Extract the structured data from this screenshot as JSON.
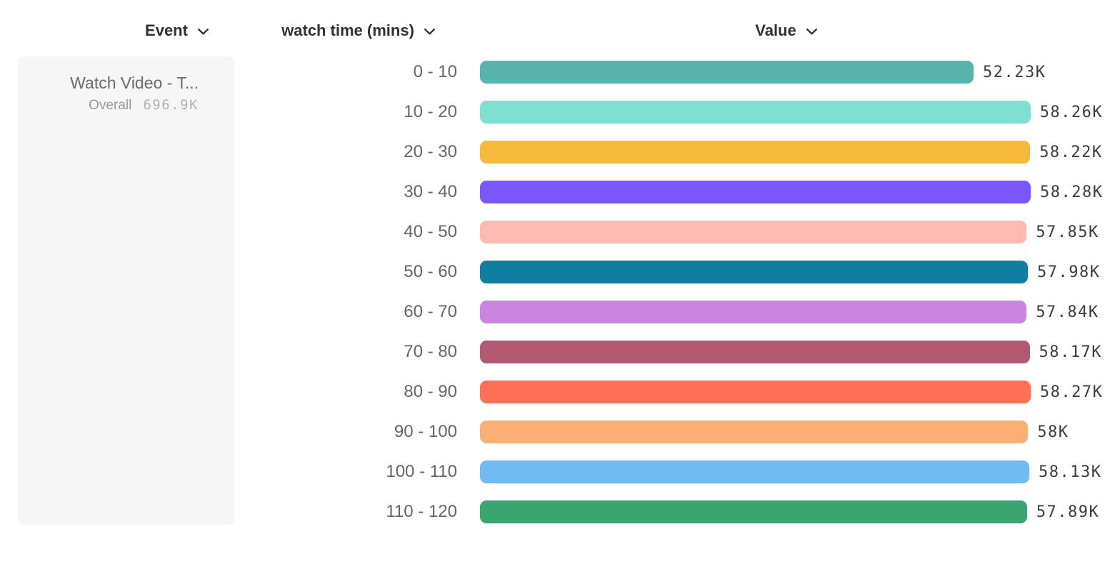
{
  "header": {
    "event": {
      "label": "Event"
    },
    "breakdown": {
      "label": "watch time (mins)"
    },
    "value": {
      "label": "Value"
    }
  },
  "event_panel": {
    "event_name": "Watch Video - T...",
    "overall_label": "Overall",
    "overall_value": "696.9K"
  },
  "chart_data": {
    "type": "bar",
    "orientation": "horizontal",
    "title": "",
    "category_axis_label": "watch time (mins)",
    "value_axis_label": "Value",
    "grid": false,
    "legend": "none",
    "value_range": [
      0,
      58280
    ],
    "categories": [
      "0 - 10",
      "10 - 20",
      "20 - 30",
      "30 - 40",
      "40 - 50",
      "50 - 60",
      "60 - 70",
      "70 - 80",
      "80 - 90",
      "90 - 100",
      "100 - 110",
      "110 - 120"
    ],
    "values": [
      52230,
      58260,
      58220,
      58280,
      57850,
      57980,
      57840,
      58170,
      58270,
      58000,
      58130,
      57890
    ],
    "value_labels": [
      "52.23K",
      "58.26K",
      "58.22K",
      "58.28K",
      "57.85K",
      "57.98K",
      "57.84K",
      "58.17K",
      "58.27K",
      "58K",
      "58.13K",
      "57.89K"
    ],
    "colors": [
      "#57b3ac",
      "#7fe0d2",
      "#f7b93c",
      "#7a57f8",
      "#fdbab2",
      "#0f7ea1",
      "#c985e0",
      "#b15a72",
      "#fe7056",
      "#fcae77",
      "#70bbf4",
      "#3aa570"
    ]
  },
  "icons": {
    "chevron_down": "chevron-down"
  }
}
